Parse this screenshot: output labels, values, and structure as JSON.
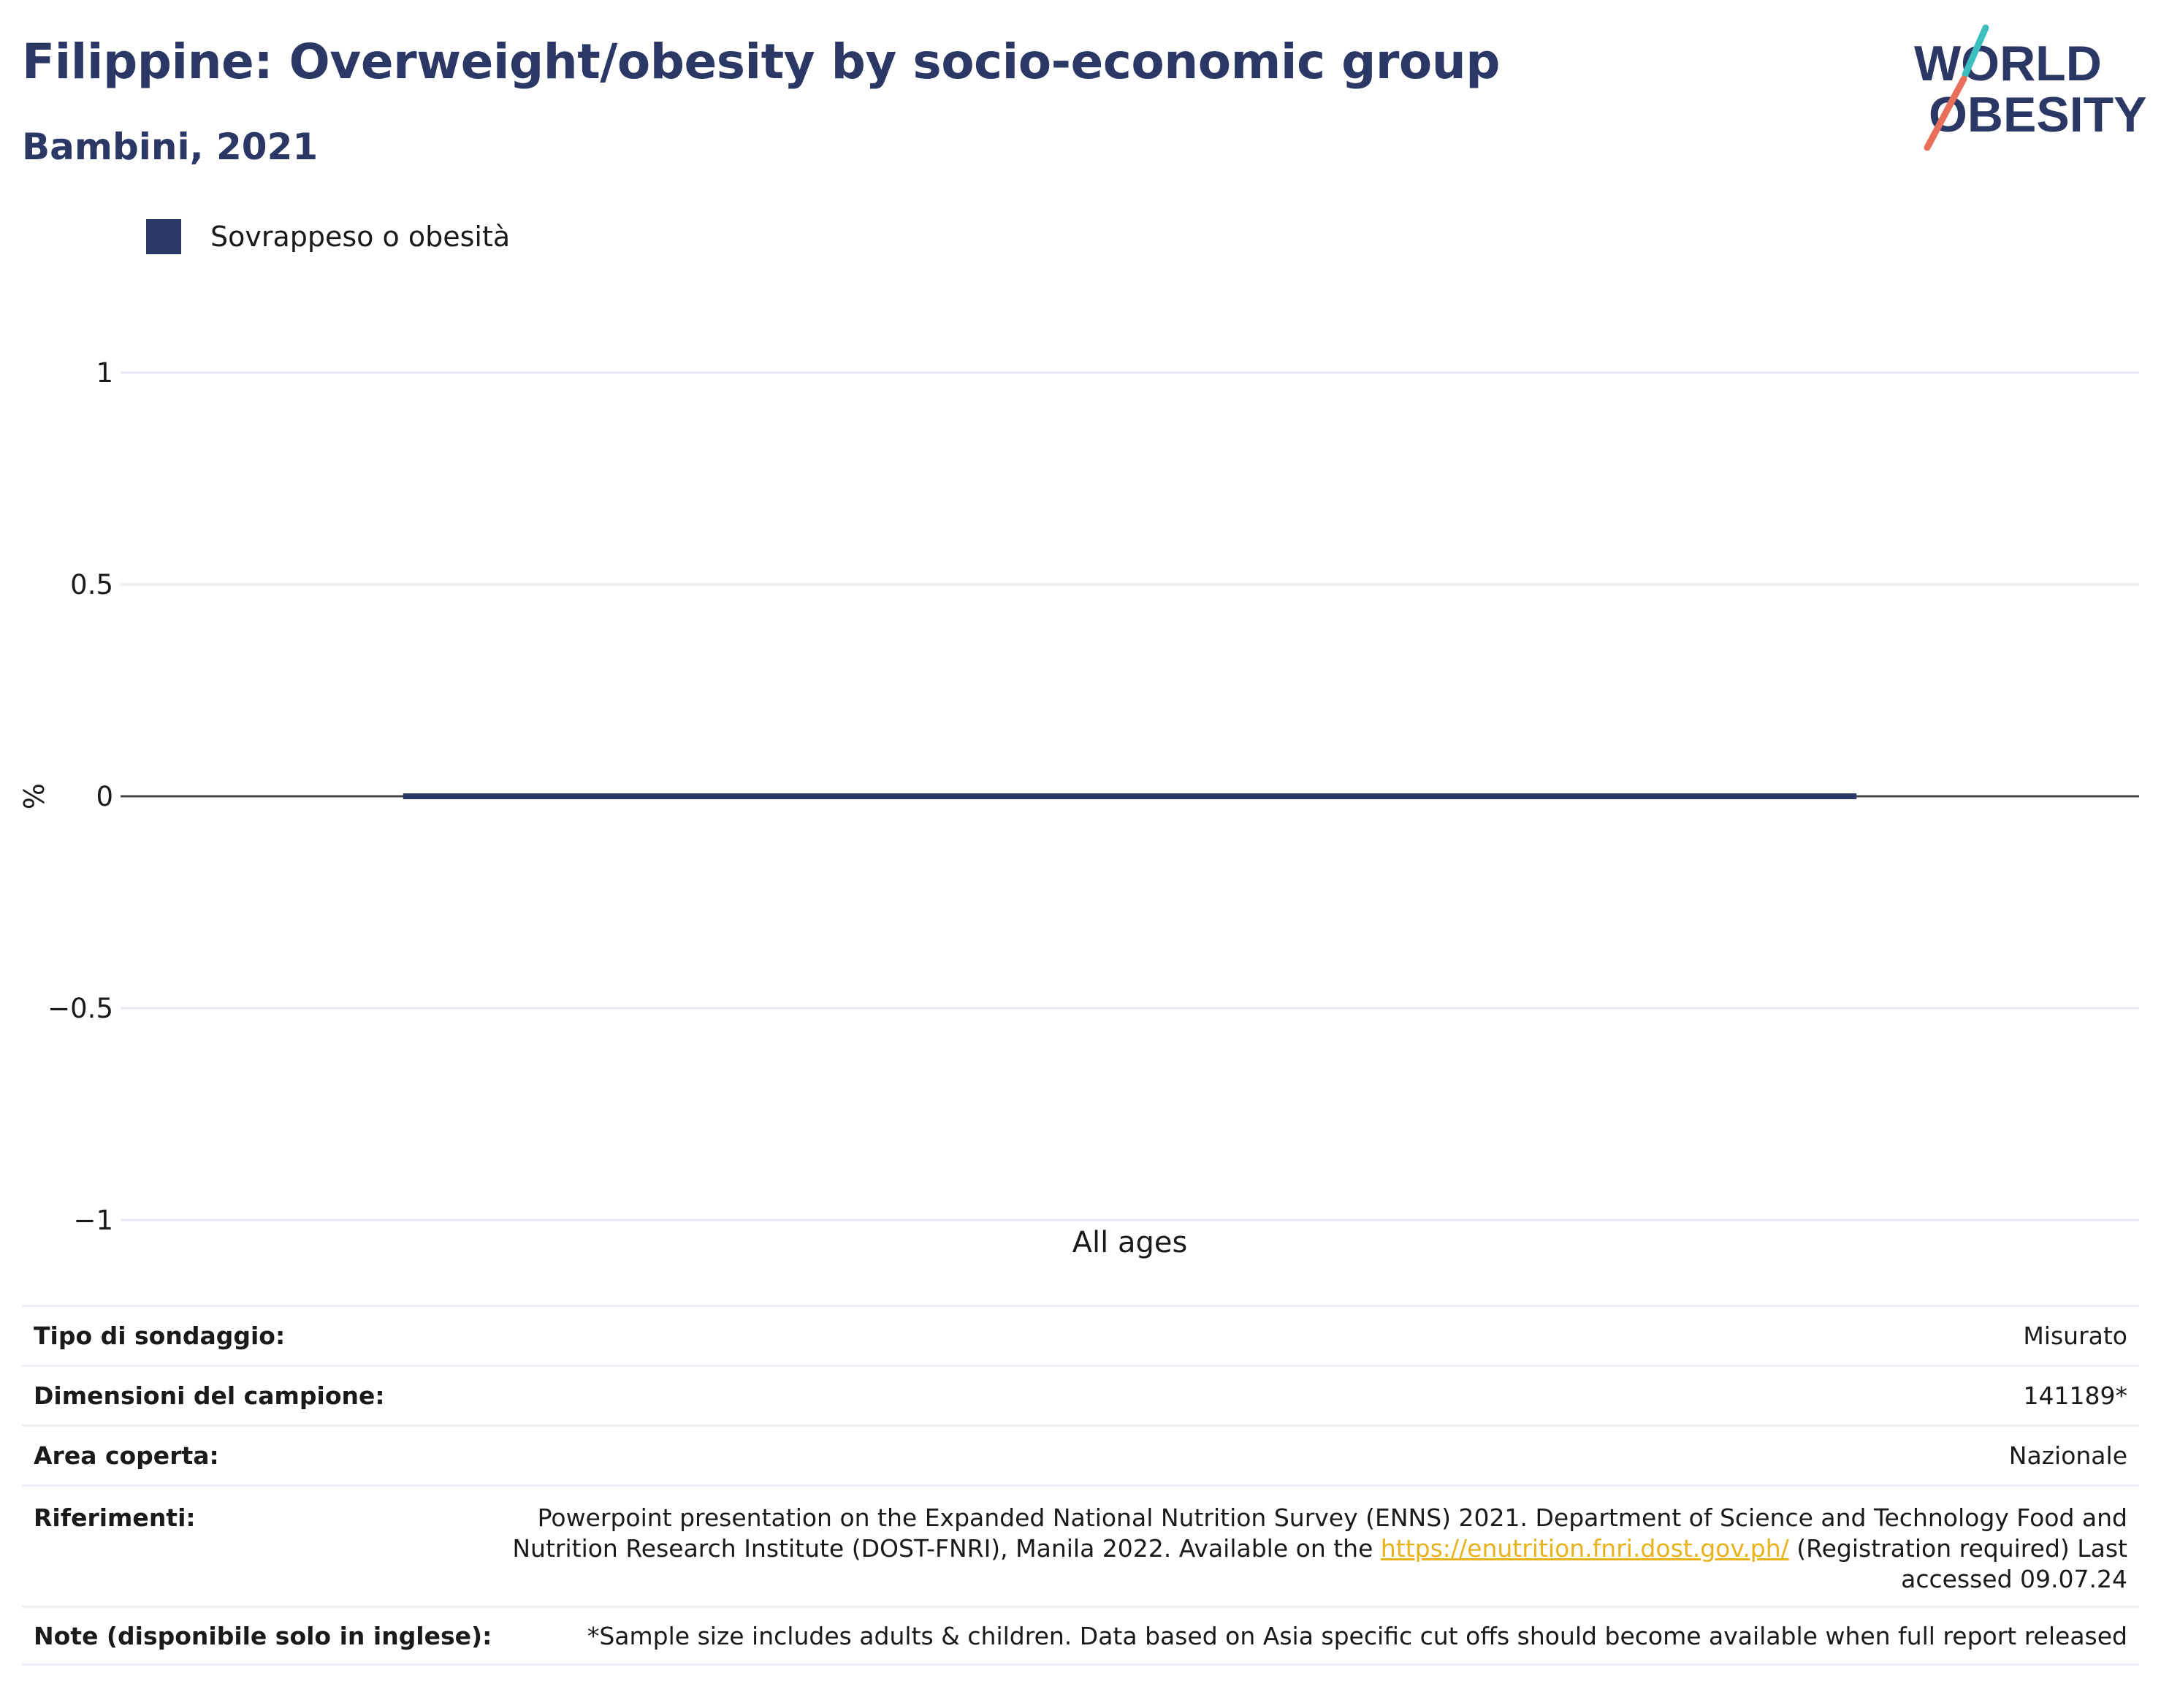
{
  "header": {
    "title": "Filippine: Overweight/obesity by socio-economic group",
    "subtitle": "Bambini, 2021"
  },
  "logo": {
    "line1": "WORLD",
    "line2": "OBESITY",
    "colors": {
      "text": "#2b3866",
      "teal": "#3bbfbf",
      "coral": "#e8705a"
    }
  },
  "colors": {
    "series": "#2b3866",
    "grid": "#e9ebf2",
    "zero_line": "#444444",
    "link": "#e8b21c"
  },
  "chart_data": {
    "type": "bar",
    "categories": [
      "All ages"
    ],
    "series": [
      {
        "name": "Sovrappeso o obesità",
        "values": [
          0
        ]
      }
    ],
    "ylabel": "%",
    "ylim": [
      -1,
      1
    ],
    "yticks": [
      1,
      0.5,
      0,
      -0.5,
      -1
    ],
    "ytick_labels": [
      "1",
      "0.5",
      "0",
      "−0.5",
      "−1"
    ],
    "grid": true,
    "legend": "top-left"
  },
  "meta": {
    "survey_type": {
      "label": "Tipo di sondaggio:",
      "value": "Misurato"
    },
    "sample_size": {
      "label": "Dimensioni del campione:",
      "value": "141189*"
    },
    "area": {
      "label": "Area coperta:",
      "value": "Nazionale"
    },
    "references": {
      "label": "Riferimenti:",
      "line1": "Powerpoint presentation on the Expanded National Nutrition Survey (ENNS) 2021. Department of Science and Technology Food and",
      "line2_before": "Nutrition Research Institute (DOST-FNRI), Manila 2022. Available on the ",
      "link": "https://enutrition.fnri.dost.gov.ph/",
      "line2_after": " (Registration required) Last",
      "line3": "accessed 09.07.24"
    },
    "notes": {
      "label": "Note (disponibile solo in inglese):",
      "value": "*Sample size includes adults & children. Data based on Asia specific cut offs should become available when full report released"
    }
  }
}
